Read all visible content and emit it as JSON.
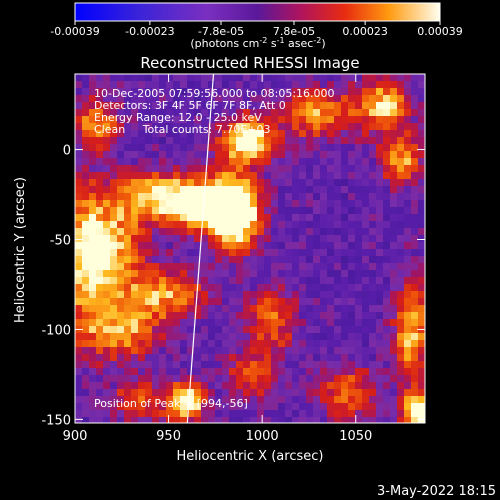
{
  "chart_data": {
    "type": "heatmap",
    "title": "Reconstructed RHESSI Image",
    "xlabel": "Heliocentric X (arcsec)",
    "ylabel": "Heliocentric Y (arcsec)",
    "xlim": [
      900,
      1087
    ],
    "ylim": [
      -152,
      42
    ],
    "x_ticks": [
      "900",
      "950",
      "1000",
      "1050"
    ],
    "x_tick_values": [
      900,
      950,
      1000,
      1050
    ],
    "y_ticks": [
      "0",
      "-50",
      "-100",
      "-150"
    ],
    "y_tick_values": [
      0,
      -50,
      -100,
      -150
    ],
    "colorbar": {
      "min": -0.00039,
      "max": 0.00039,
      "tick_labels": [
        "-0.00039",
        "-0.00023",
        "-7.8e-05",
        "7.8e-05",
        "0.00023",
        "0.00039"
      ],
      "tick_values": [
        -0.00039,
        -0.00023,
        -7.8e-05,
        7.8e-05,
        0.00023,
        0.00039
      ],
      "units_label": "(photons cm",
      "units_exp1": "-2",
      "units_mid": " s",
      "units_exp2": "-1",
      "units_mid2": " asec",
      "units_exp3": "-2",
      "units_end": ")"
    },
    "annotations": [
      "10-Dec-2005 07:59:56.000 to 08:05:16.000",
      "Detectors: 3F 4F 5F 6F 7F 8F, Att 0",
      "Energy Range: 12.0 - 25.0 keV",
      "Clean     Total counts: 7.70E+03"
    ],
    "peak_label": "Position of Peak = [994,-56]",
    "peak": [
      994,
      -56
    ],
    "limb_line": [
      [
        974,
        42
      ],
      [
        960,
        -152
      ]
    ],
    "bright_sources": [
      {
        "x": 985,
        "y": -35,
        "strength": 1.0,
        "sx": 10,
        "sy": 14
      },
      {
        "x": 992,
        "y": 5,
        "strength": 0.85,
        "sx": 10,
        "sy": 9
      },
      {
        "x": 965,
        "y": -30,
        "strength": 0.7,
        "sx": 13,
        "sy": 10
      },
      {
        "x": 940,
        "y": -25,
        "strength": 0.55,
        "sx": 14,
        "sy": 10
      },
      {
        "x": 920,
        "y": -55,
        "strength": 0.6,
        "sx": 12,
        "sy": 18
      },
      {
        "x": 950,
        "y": -80,
        "strength": 0.5,
        "sx": 16,
        "sy": 10
      },
      {
        "x": 925,
        "y": -100,
        "strength": 0.55,
        "sx": 14,
        "sy": 12
      },
      {
        "x": 905,
        "y": -60,
        "strength": 0.55,
        "sx": 8,
        "sy": 30
      },
      {
        "x": 960,
        "y": -140,
        "strength": 0.75,
        "sx": 7,
        "sy": 8
      },
      {
        "x": 1005,
        "y": -95,
        "strength": 0.45,
        "sx": 10,
        "sy": 12
      },
      {
        "x": 995,
        "y": -125,
        "strength": 0.4,
        "sx": 10,
        "sy": 10
      },
      {
        "x": 1030,
        "y": 20,
        "strength": 0.55,
        "sx": 14,
        "sy": 10
      },
      {
        "x": 1065,
        "y": 25,
        "strength": 0.6,
        "sx": 10,
        "sy": 10
      },
      {
        "x": 1075,
        "y": -5,
        "strength": 0.55,
        "sx": 8,
        "sy": 10
      },
      {
        "x": 1080,
        "y": -100,
        "strength": 0.6,
        "sx": 7,
        "sy": 20
      },
      {
        "x": 1083,
        "y": -145,
        "strength": 0.9,
        "sx": 6,
        "sy": 7
      },
      {
        "x": 1045,
        "y": -135,
        "strength": 0.45,
        "sx": 12,
        "sy": 10
      },
      {
        "x": 912,
        "y": 15,
        "strength": 0.5,
        "sx": 9,
        "sy": 10
      },
      {
        "x": 935,
        "y": -140,
        "strength": 0.4,
        "sx": 12,
        "sy": 8
      }
    ],
    "grid": false
  },
  "timestamp": "3-May-2022 18:15"
}
